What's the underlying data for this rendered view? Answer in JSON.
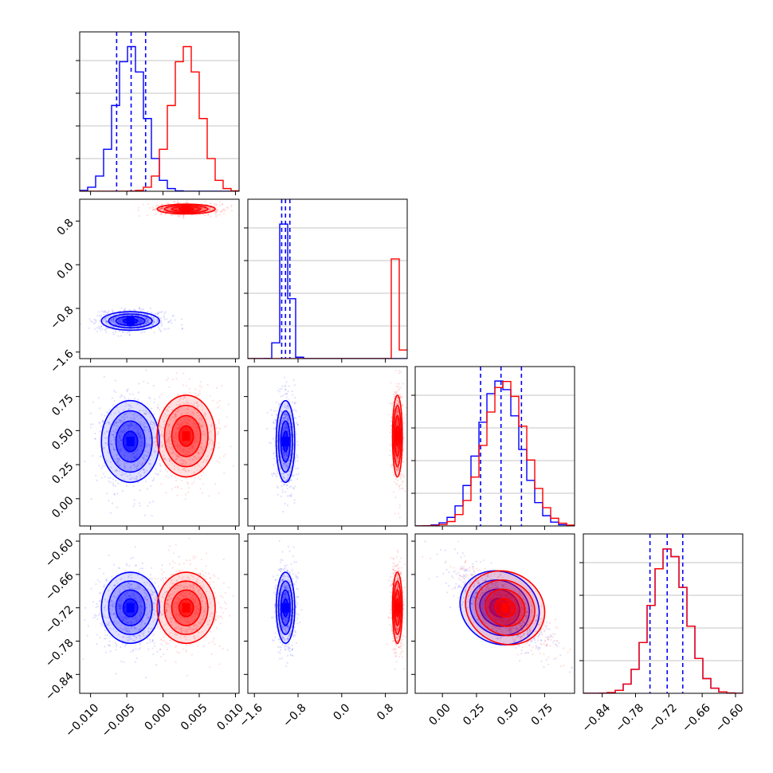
{
  "colors": {
    "blue": "#0000ff",
    "red": "#ff0000",
    "grid": "#b0b0b0"
  },
  "chart_data": {
    "type": "corner",
    "grid": true,
    "parameters": 4,
    "ticks": {
      "p0": [
        "−0.010",
        "−0.005",
        "0.000",
        "0.005",
        "0.010"
      ],
      "p1": [
        "−1.6",
        "−0.8",
        "0.0",
        "0.8"
      ],
      "p2": [
        "0.00",
        "0.25",
        "0.50",
        "0.75"
      ],
      "p3": [
        "−0.84",
        "−0.78",
        "−0.72",
        "−0.66",
        "−0.60"
      ]
    },
    "tick_values": {
      "p0": [
        -0.01,
        -0.005,
        0.0,
        0.005,
        0.01
      ],
      "p1": [
        -1.6,
        -0.8,
        0.0,
        0.8
      ],
      "p2": [
        0.0,
        0.25,
        0.5,
        0.75
      ],
      "p3": [
        -0.84,
        -0.78,
        -0.72,
        -0.66,
        -0.6
      ]
    },
    "ranges": {
      "p0": [
        -0.0115,
        0.0105
      ],
      "p1": [
        -1.72,
        1.2
      ],
      "p2": [
        -0.2,
        0.97
      ],
      "p3": [
        -0.874,
        -0.587
      ]
    },
    "series": [
      {
        "color": "blue",
        "centers": [
          -0.0045,
          -1.03,
          0.42,
          -0.72
        ],
        "sigmas": [
          0.002,
          0.085,
          0.15,
          0.032
        ],
        "quantiles": {
          "p0": [
            -0.0064,
            -0.0044,
            -0.0024
          ],
          "p1": [
            -1.1,
            -1.03,
            -0.95
          ],
          "p2": [
            0.28,
            0.43,
            0.58
          ],
          "p3": [
            -0.754,
            -0.723,
            -0.695
          ]
        }
      },
      {
        "color": "red",
        "centers": [
          0.0032,
          1.02,
          0.46,
          -0.72
        ],
        "sigmas": [
          0.002,
          0.045,
          0.15,
          0.032
        ]
      }
    ],
    "correlations": [
      {
        "pair": "p1-p2",
        "rho": 0.0
      },
      {
        "pair": "p2-p3",
        "rho": -0.75
      }
    ]
  }
}
